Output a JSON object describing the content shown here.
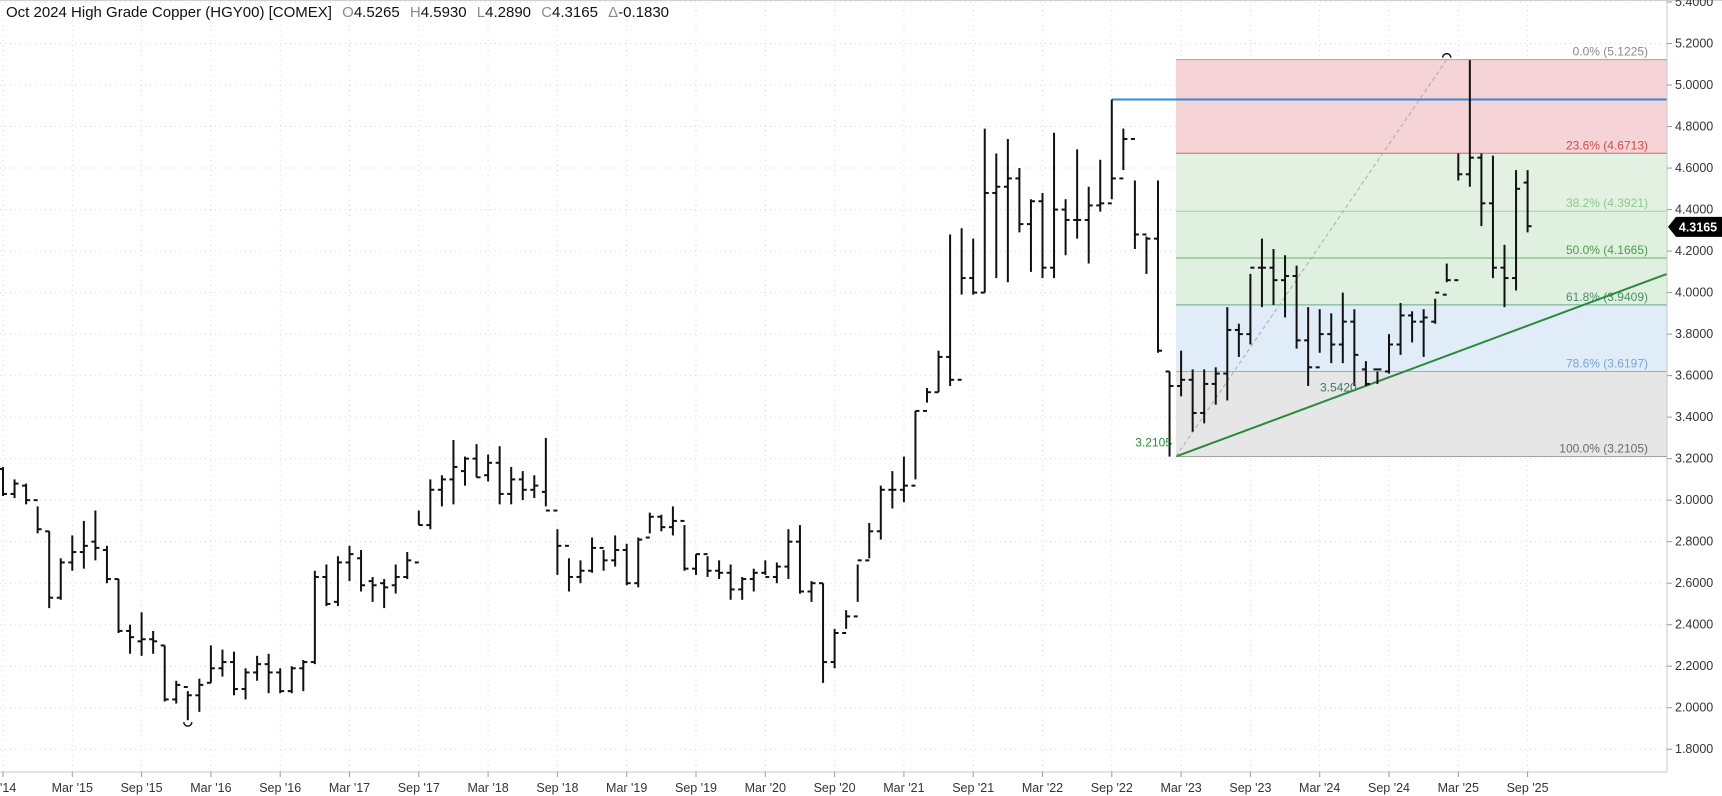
{
  "header": {
    "title": "Oct 2024 High Grade Copper (HGY00) [COMEX]",
    "open_key": "O",
    "open": "4.5265",
    "high_key": "H",
    "high": "4.5930",
    "low_key": "L",
    "low": "4.2890",
    "close_key": "C",
    "close": "4.3165",
    "change_key": "Δ",
    "change": "-0.1830"
  },
  "last_price_tag": "4.3165",
  "colors": {
    "bars": "#111111",
    "resistance_line": "#2d8bd6",
    "trendline": "#2a8a3a",
    "fib_red_zone": "#f6d3d6",
    "fib_green_zone": "#e0f0e0",
    "fib_blue_zone": "#e0ecf8",
    "fib_gray_zone": "#e6e6e6",
    "price_tag_bg": "#000000"
  },
  "annotations": {
    "low_2022": "3.2105",
    "low_2023": "3.5420"
  },
  "chart_data": {
    "type": "ohlc",
    "title": "Oct 2024 High Grade Copper (HGY00) [COMEX]",
    "timeframe": "monthly",
    "y_range": [
      1.7,
      5.4
    ],
    "y_ticks": [
      "1.8000",
      "2.0000",
      "2.2000",
      "2.4000",
      "2.6000",
      "2.8000",
      "3.0000",
      "3.2000",
      "3.4000",
      "3.6000",
      "3.8000",
      "4.0000",
      "4.2000",
      "4.4000",
      "4.6000",
      "4.8000",
      "5.0000",
      "5.2000",
      "5.4000"
    ],
    "x_ticks": [
      {
        "label": "'14",
        "month_index": 0
      },
      {
        "label": "Mar '15",
        "month_index": 6
      },
      {
        "label": "Sep '15",
        "month_index": 12
      },
      {
        "label": "Mar '16",
        "month_index": 18
      },
      {
        "label": "Sep '16",
        "month_index": 24
      },
      {
        "label": "Mar '17",
        "month_index": 30
      },
      {
        "label": "Sep '17",
        "month_index": 36
      },
      {
        "label": "Mar '18",
        "month_index": 42
      },
      {
        "label": "Sep '18",
        "month_index": 48
      },
      {
        "label": "Mar '19",
        "month_index": 54
      },
      {
        "label": "Sep '19",
        "month_index": 60
      },
      {
        "label": "Mar '20",
        "month_index": 66
      },
      {
        "label": "Sep '20",
        "month_index": 72
      },
      {
        "label": "Mar '21",
        "month_index": 78
      },
      {
        "label": "Sep '21",
        "month_index": 84
      },
      {
        "label": "Mar '22",
        "month_index": 90
      },
      {
        "label": "Sep '22",
        "month_index": 96
      },
      {
        "label": "Mar '23",
        "month_index": 102
      },
      {
        "label": "Sep '23",
        "month_index": 108
      },
      {
        "label": "Mar '24",
        "month_index": 114
      },
      {
        "label": "Sep '24",
        "month_index": 120
      },
      {
        "label": "Mar '25",
        "month_index": 126
      },
      {
        "label": "Sep '25",
        "month_index": 132
      }
    ],
    "bars": [
      [
        3.15,
        3.16,
        3.02,
        3.03
      ],
      [
        3.03,
        3.1,
        3.01,
        3.08
      ],
      [
        3.07,
        3.08,
        2.98,
        3.0
      ],
      [
        3.0,
        2.97,
        2.84,
        2.86
      ],
      [
        2.85,
        2.85,
        2.48,
        2.53
      ],
      [
        2.53,
        2.72,
        2.52,
        2.7
      ],
      [
        2.7,
        2.83,
        2.66,
        2.75
      ],
      [
        2.75,
        2.9,
        2.67,
        2.78
      ],
      [
        2.8,
        2.95,
        2.71,
        2.77
      ],
      [
        2.76,
        2.78,
        2.6,
        2.62
      ],
      [
        2.62,
        2.62,
        2.36,
        2.37
      ],
      [
        2.37,
        2.4,
        2.26,
        2.34
      ],
      [
        2.32,
        2.46,
        2.25,
        2.33
      ],
      [
        2.33,
        2.37,
        2.26,
        2.32
      ],
      [
        2.3,
        2.3,
        2.03,
        2.04
      ],
      [
        2.04,
        2.13,
        2.02,
        2.11
      ],
      [
        2.1,
        2.08,
        1.94,
        2.06
      ],
      [
        2.06,
        2.14,
        1.98,
        2.11
      ],
      [
        2.12,
        2.3,
        2.12,
        2.19
      ],
      [
        2.19,
        2.28,
        2.15,
        2.22
      ],
      [
        2.22,
        2.27,
        2.06,
        2.09
      ],
      [
        2.09,
        2.19,
        2.04,
        2.17
      ],
      [
        2.17,
        2.25,
        2.13,
        2.21
      ],
      [
        2.21,
        2.26,
        2.07,
        2.17
      ],
      [
        2.17,
        2.19,
        2.07,
        2.08
      ],
      [
        2.08,
        2.2,
        2.07,
        2.19
      ],
      [
        2.19,
        2.23,
        2.08,
        2.22
      ],
      [
        2.22,
        2.66,
        2.21,
        2.63
      ],
      [
        2.63,
        2.69,
        2.49,
        2.5
      ],
      [
        2.51,
        2.73,
        2.49,
        2.7
      ],
      [
        2.7,
        2.78,
        2.61,
        2.74
      ],
      [
        2.72,
        2.76,
        2.56,
        2.59
      ],
      [
        2.61,
        2.63,
        2.51,
        2.59
      ],
      [
        2.6,
        2.62,
        2.48,
        2.58
      ],
      [
        2.59,
        2.69,
        2.55,
        2.63
      ],
      [
        2.63,
        2.75,
        2.62,
        2.71
      ],
      [
        2.7,
        2.95,
        2.88,
        2.88
      ],
      [
        2.88,
        3.1,
        2.86,
        3.05
      ],
      [
        3.05,
        3.12,
        2.97,
        3.1
      ],
      [
        3.1,
        3.29,
        2.98,
        3.16
      ],
      [
        3.14,
        3.21,
        3.07,
        3.2
      ],
      [
        3.2,
        3.27,
        3.11,
        3.11
      ],
      [
        3.12,
        3.22,
        3.09,
        3.18
      ],
      [
        3.18,
        3.26,
        2.98,
        3.03
      ],
      [
        3.03,
        3.16,
        2.98,
        3.1
      ],
      [
        3.1,
        3.14,
        3.0,
        3.05
      ],
      [
        3.05,
        3.12,
        3.01,
        3.07
      ],
      [
        3.04,
        3.3,
        2.97,
        2.95
      ],
      [
        2.95,
        2.86,
        2.64,
        2.78
      ],
      [
        2.78,
        2.72,
        2.56,
        2.63
      ],
      [
        2.63,
        2.71,
        2.6,
        2.66
      ],
      [
        2.66,
        2.82,
        2.65,
        2.77
      ],
      [
        2.77,
        2.76,
        2.66,
        2.71
      ],
      [
        2.71,
        2.83,
        2.68,
        2.76
      ],
      [
        2.76,
        2.79,
        2.59,
        2.6
      ],
      [
        2.6,
        2.82,
        2.58,
        2.81
      ],
      [
        2.82,
        2.94,
        2.84,
        2.92
      ],
      [
        2.92,
        2.93,
        2.85,
        2.87
      ],
      [
        2.87,
        2.97,
        2.83,
        2.9
      ],
      [
        2.9,
        2.88,
        2.66,
        2.67
      ],
      [
        2.67,
        2.74,
        2.64,
        2.74
      ],
      [
        2.74,
        2.73,
        2.63,
        2.66
      ],
      [
        2.66,
        2.71,
        2.62,
        2.65
      ],
      [
        2.65,
        2.69,
        2.52,
        2.57
      ],
      [
        2.57,
        2.63,
        2.52,
        2.62
      ],
      [
        2.62,
        2.67,
        2.56,
        2.65
      ],
      [
        2.65,
        2.71,
        2.64,
        2.63
      ],
      [
        2.63,
        2.7,
        2.6,
        2.68
      ],
      [
        2.68,
        2.86,
        2.62,
        2.8
      ],
      [
        2.8,
        2.88,
        2.55,
        2.56
      ],
      [
        2.56,
        2.61,
        2.51,
        2.6
      ],
      [
        2.6,
        2.6,
        2.12,
        2.22
      ],
      [
        2.22,
        2.38,
        2.19,
        2.36
      ],
      [
        2.36,
        2.47,
        2.38,
        2.44
      ],
      [
        2.44,
        2.69,
        2.51,
        2.71
      ],
      [
        2.71,
        2.89,
        2.72,
        2.85
      ],
      [
        2.85,
        3.07,
        2.81,
        3.05
      ],
      [
        3.05,
        3.14,
        2.96,
        3.05
      ],
      [
        3.05,
        3.21,
        2.99,
        3.07
      ],
      [
        3.07,
        3.43,
        3.1,
        3.43
      ],
      [
        3.43,
        3.54,
        3.47,
        3.52
      ],
      [
        3.52,
        3.72,
        3.52,
        3.69
      ],
      [
        3.69,
        4.28,
        3.55,
        3.58
      ],
      [
        3.58,
        4.31,
        3.99,
        4.07
      ],
      [
        4.07,
        4.26,
        3.99,
        4.0
      ],
      [
        4.0,
        4.79,
        4.0,
        4.48
      ],
      [
        4.48,
        4.67,
        4.07,
        4.51
      ],
      [
        4.51,
        4.74,
        4.05,
        4.55
      ],
      [
        4.55,
        4.6,
        4.29,
        4.33
      ],
      [
        4.33,
        4.45,
        4.1,
        4.44
      ],
      [
        4.44,
        4.48,
        4.07,
        4.12
      ],
      [
        4.12,
        4.77,
        4.07,
        4.4
      ],
      [
        4.4,
        4.45,
        4.18,
        4.35
      ],
      [
        4.35,
        4.69,
        4.26,
        4.35
      ],
      [
        4.35,
        4.51,
        4.14,
        4.42
      ],
      [
        4.42,
        4.64,
        4.39,
        4.43
      ],
      [
        4.43,
        4.93,
        4.45,
        4.55
      ],
      [
        4.55,
        4.79,
        4.59,
        4.74
      ],
      [
        4.74,
        4.54,
        4.21,
        4.28
      ],
      [
        4.28,
        4.27,
        4.09,
        4.26
      ],
      [
        4.26,
        4.54,
        3.71,
        3.72
      ],
      [
        3.62,
        3.62,
        3.21,
        3.55
      ],
      [
        3.55,
        3.72,
        3.5,
        3.58
      ],
      [
        3.58,
        3.63,
        3.33,
        3.42
      ],
      [
        3.42,
        3.63,
        3.37,
        3.56
      ],
      [
        3.56,
        3.64,
        3.46,
        3.61
      ],
      [
        3.61,
        3.93,
        3.48,
        3.82
      ],
      [
        3.82,
        3.85,
        3.69,
        3.8
      ],
      [
        3.8,
        4.09,
        3.75,
        4.12
      ],
      [
        4.12,
        4.26,
        3.93,
        4.12
      ],
      [
        4.12,
        4.21,
        3.94,
        4.06
      ],
      [
        4.06,
        4.18,
        3.88,
        4.08
      ],
      [
        4.08,
        4.13,
        3.73,
        3.77
      ],
      [
        3.77,
        3.93,
        3.55,
        3.64
      ],
      [
        3.64,
        3.92,
        3.71,
        3.8
      ],
      [
        3.8,
        3.9,
        3.66,
        3.75
      ],
      [
        3.75,
        4.0,
        3.66,
        3.86
      ],
      [
        3.86,
        3.92,
        3.55,
        3.7
      ],
      [
        3.63,
        3.67,
        3.55,
        3.56
      ],
      [
        3.63,
        3.62,
        3.56,
        3.63
      ],
      [
        3.62,
        3.8,
        3.61,
        3.75
      ],
      [
        3.75,
        3.95,
        3.7,
        3.89
      ],
      [
        3.89,
        3.91,
        3.76,
        3.86
      ],
      [
        3.86,
        3.92,
        3.69,
        3.88
      ],
      [
        3.86,
        3.97,
        3.85,
        4.0
      ],
      [
        3.99,
        4.14,
        4.05,
        4.06
      ],
      [
        4.06,
        4.67,
        4.54,
        4.57
      ],
      [
        4.57,
        5.12,
        4.51,
        4.65
      ],
      [
        4.65,
        4.67,
        4.32,
        4.43
      ],
      [
        4.43,
        4.66,
        4.07,
        4.12
      ],
      [
        4.12,
        4.23,
        3.93,
        4.07
      ],
      [
        4.07,
        4.59,
        4.01,
        4.5
      ],
      [
        4.53,
        4.59,
        4.29,
        4.32
      ]
    ],
    "fibonacci": [
      {
        "label": "0.0% (5.1225)",
        "value": 5.1225
      },
      {
        "label": "23.6% (4.6713)",
        "value": 4.6713
      },
      {
        "label": "38.2% (4.3921)",
        "value": 4.3921
      },
      {
        "label": "50.0% (4.1665)",
        "value": 4.1665
      },
      {
        "label": "61.8% (3.9409)",
        "value": 3.9409
      },
      {
        "label": "78.6% (3.6197)",
        "value": 3.6197
      },
      {
        "label": "100.0% (3.2105)",
        "value": 3.2105
      }
    ],
    "horizontal_line": {
      "value": 4.93
    },
    "trendline": {
      "from": [
        99,
        3.2105
      ],
      "to": [
        135,
        4.09
      ]
    },
    "grid": true
  }
}
